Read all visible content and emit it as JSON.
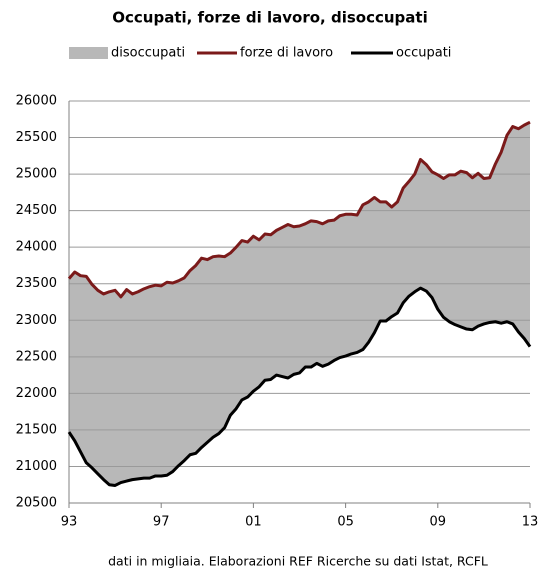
{
  "chart_data": {
    "type": "line",
    "title": "Occupati, forze di lavoro, disoccupati",
    "note": "dati in migliaia. Elaborazioni REF Ricerche su dati Istat, RCFL",
    "x": [
      1993,
      1993.25,
      1993.5,
      1993.75,
      1994,
      1994.25,
      1994.5,
      1994.75,
      1995,
      1995.25,
      1995.5,
      1995.75,
      1996,
      1996.25,
      1996.5,
      1996.75,
      1997,
      1997.25,
      1997.5,
      1997.75,
      1998,
      1998.25,
      1998.5,
      1998.75,
      1999,
      1999.25,
      1999.5,
      1999.75,
      2000,
      2000.25,
      2000.5,
      2000.75,
      2001,
      2001.25,
      2001.5,
      2001.75,
      2002,
      2002.25,
      2002.5,
      2002.75,
      2003,
      2003.25,
      2003.5,
      2003.75,
      2004,
      2004.25,
      2004.5,
      2004.75,
      2005,
      2005.25,
      2005.5,
      2005.75,
      2006,
      2006.25,
      2006.5,
      2006.75,
      2007,
      2007.25,
      2007.5,
      2007.75,
      2008,
      2008.25,
      2008.5,
      2008.75,
      2009,
      2009.25,
      2009.5,
      2009.75,
      2010,
      2010.25,
      2010.5,
      2010.75,
      2011,
      2011.25,
      2011.5,
      2011.75,
      2012,
      2012.25,
      2012.5,
      2012.75,
      2013
    ],
    "area": {
      "name": "disoccupati",
      "color": "#b8b8b8"
    },
    "series": [
      {
        "name": "forze di lavoro",
        "color": "#7b1a1a",
        "values": [
          23570,
          23660,
          23610,
          23600,
          23490,
          23410,
          23360,
          23390,
          23410,
          23320,
          23420,
          23360,
          23390,
          23430,
          23460,
          23480,
          23470,
          23520,
          23510,
          23540,
          23580,
          23680,
          23750,
          23850,
          23830,
          23870,
          23880,
          23870,
          23920,
          24000,
          24090,
          24070,
          24150,
          24100,
          24180,
          24170,
          24230,
          24270,
          24310,
          24280,
          24290,
          24320,
          24360,
          24350,
          24320,
          24360,
          24370,
          24430,
          24450,
          24450,
          24440,
          24580,
          24620,
          24680,
          24620,
          24620,
          24550,
          24620,
          24810,
          24900,
          25000,
          25200,
          25130,
          25030,
          24990,
          24940,
          24990,
          24990,
          25040,
          25020,
          24950,
          25010,
          24940,
          24950,
          25140,
          25300,
          25530,
          25650,
          25620,
          25670,
          25710
        ]
      },
      {
        "name": "occupati",
        "color": "#000000",
        "values": [
          21470,
          21350,
          21200,
          21050,
          20980,
          20900,
          20820,
          20750,
          20740,
          20780,
          20800,
          20820,
          20830,
          20840,
          20840,
          20870,
          20870,
          20880,
          20930,
          21010,
          21080,
          21160,
          21180,
          21260,
          21330,
          21400,
          21450,
          21530,
          21700,
          21790,
          21910,
          21950,
          22030,
          22090,
          22180,
          22190,
          22250,
          22230,
          22210,
          22260,
          22280,
          22360,
          22360,
          22410,
          22370,
          22400,
          22450,
          22490,
          22510,
          22540,
          22560,
          22600,
          22700,
          22830,
          22990,
          22990,
          23050,
          23100,
          23240,
          23330,
          23390,
          23440,
          23400,
          23310,
          23150,
          23040,
          22980,
          22940,
          22910,
          22880,
          22870,
          22920,
          22950,
          22970,
          22980,
          22960,
          22980,
          22950,
          22840,
          22750,
          22640
        ]
      }
    ],
    "xlim": [
      1993,
      2013
    ],
    "xticks": [
      {
        "value": 1993,
        "label": "93"
      },
      {
        "value": 1997,
        "label": "97"
      },
      {
        "value": 2001,
        "label": "01"
      },
      {
        "value": 2005,
        "label": "05"
      },
      {
        "value": 2009,
        "label": "09"
      },
      {
        "value": 2013,
        "label": "13"
      }
    ],
    "ylim": [
      20500,
      26000
    ],
    "yticks": [
      20500,
      21000,
      21500,
      22000,
      22500,
      23000,
      23500,
      24000,
      24500,
      25000,
      25500,
      26000
    ],
    "grid": true
  }
}
